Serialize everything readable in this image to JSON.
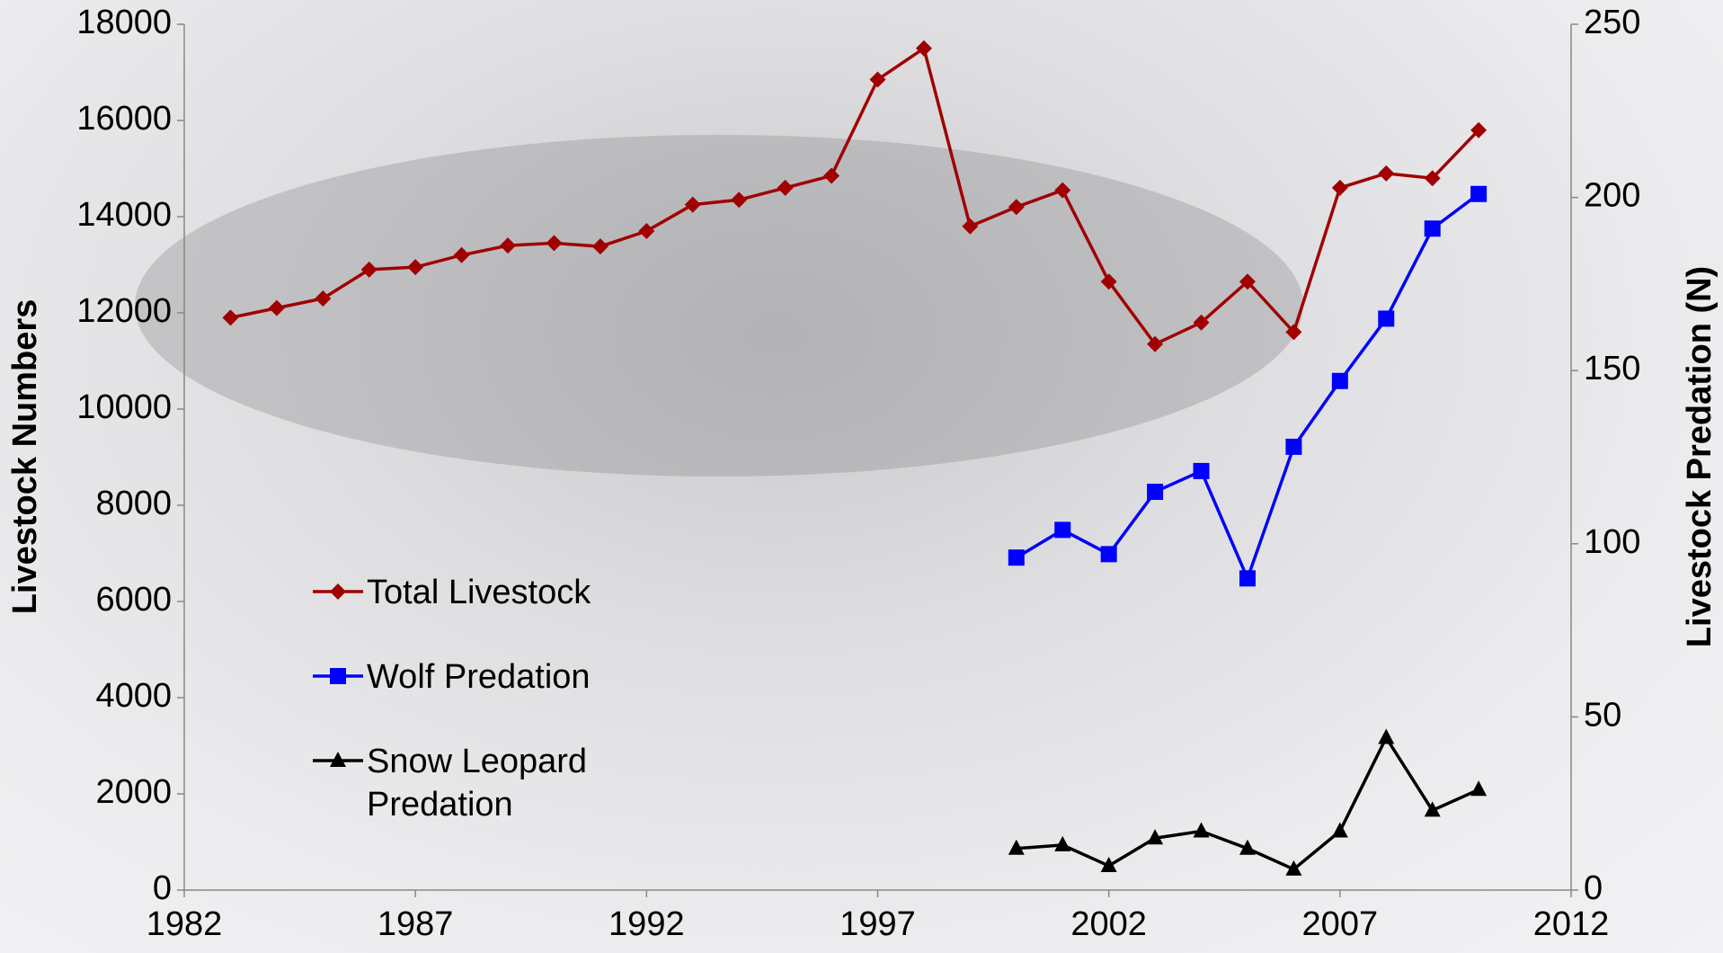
{
  "chart_data": {
    "type": "line",
    "x": [
      1983,
      1984,
      1985,
      1986,
      1987,
      1988,
      1989,
      1990,
      1991,
      1992,
      1993,
      1994,
      1995,
      1996,
      1997,
      1998,
      1999,
      2000,
      2001,
      2002,
      2003,
      2004,
      2005,
      2006,
      2007,
      2008,
      2009,
      2010
    ],
    "series": [
      {
        "name": "Total Livestock",
        "color": "#a00000",
        "marker": "diamond",
        "values": [
          11900,
          12100,
          12300,
          12900,
          12950,
          13200,
          13400,
          13450,
          13380,
          13700,
          14250,
          14350,
          14600,
          14850,
          16850,
          17500,
          13800,
          14200,
          14550,
          12650,
          11350,
          11800,
          12650,
          11600,
          14600,
          14900,
          14800,
          15800
        ]
      },
      {
        "name": "Wolf Predation",
        "color": "#0000ff",
        "marker": "square",
        "axis": "y2",
        "values": [
          null,
          null,
          null,
          null,
          null,
          null,
          null,
          null,
          null,
          null,
          null,
          null,
          null,
          null,
          null,
          null,
          null,
          96,
          104,
          97,
          115,
          121,
          90,
          128,
          147,
          165,
          191,
          201
        ]
      },
      {
        "name": "Snow Leopard Predation",
        "color": "#000000",
        "marker": "triangle",
        "axis": "y2",
        "values": [
          null,
          null,
          null,
          null,
          null,
          null,
          null,
          null,
          null,
          null,
          null,
          null,
          null,
          null,
          null,
          null,
          null,
          12,
          13,
          7,
          15,
          17,
          12,
          6,
          17,
          44,
          23,
          29
        ]
      }
    ],
    "xlim": [
      1982,
      2012
    ],
    "xticks": [
      1982,
      1987,
      1992,
      1997,
      2002,
      2007,
      2012
    ],
    "ylim": [
      0,
      18000
    ],
    "yticks": [
      0,
      2000,
      4000,
      6000,
      8000,
      10000,
      12000,
      14000,
      16000,
      18000
    ],
    "y2lim": [
      0,
      250
    ],
    "y2ticks": [
      0,
      50,
      100,
      150,
      200,
      250
    ],
    "ylabel": "Livestock Numbers",
    "y2label": "Livestock Predation (N)"
  }
}
